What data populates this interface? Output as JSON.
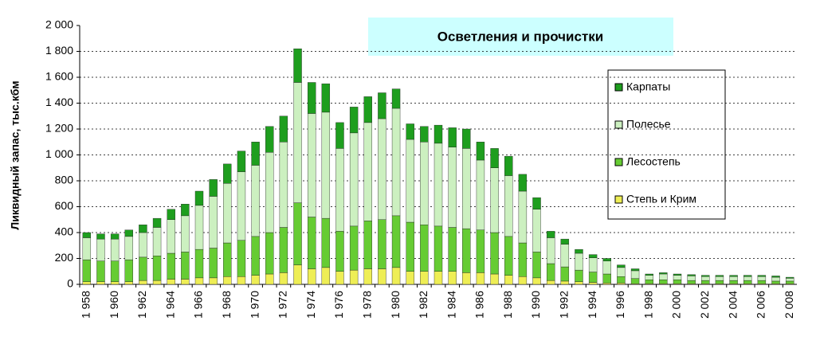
{
  "chart_data": {
    "type": "stacked-bar",
    "title": "Осветления и прочистки",
    "y_label": "Ликвидный запас, тыс.кбм",
    "categories": [
      "1 958",
      null,
      "1 960",
      null,
      "1 962",
      null,
      "1 964",
      null,
      "1 966",
      null,
      "1 968",
      null,
      "1 970",
      null,
      "1 972",
      null,
      "1 974",
      null,
      "1 976",
      null,
      "1 978",
      null,
      "1 980",
      null,
      "1 982",
      null,
      "1 984",
      null,
      "1 986",
      null,
      "1 988",
      null,
      "1 990",
      null,
      "1 992",
      null,
      "1 994",
      null,
      "1 996",
      null,
      "1 998",
      null,
      "2 000",
      null,
      "2 002",
      null,
      "2 004",
      null,
      "2 006",
      null,
      "2 008"
    ],
    "series": [
      {
        "name": "Степь и Крим",
        "color": "#eeee55",
        "values": [
          20,
          20,
          20,
          20,
          30,
          30,
          40,
          40,
          50,
          50,
          60,
          60,
          70,
          80,
          90,
          150,
          120,
          130,
          100,
          110,
          120,
          120,
          130,
          100,
          100,
          100,
          100,
          90,
          90,
          80,
          70,
          60,
          50,
          30,
          25,
          20,
          15,
          10,
          10,
          5,
          5,
          5,
          5,
          5,
          5,
          5,
          5,
          5,
          5,
          5,
          5
        ]
      },
      {
        "name": "Лесостепь",
        "color": "#66cc33",
        "values": [
          170,
          160,
          160,
          170,
          180,
          190,
          200,
          210,
          220,
          230,
          260,
          280,
          300,
          320,
          350,
          480,
          400,
          380,
          310,
          340,
          370,
          380,
          400,
          380,
          360,
          350,
          340,
          340,
          330,
          320,
          300,
          260,
          200,
          130,
          110,
          90,
          80,
          70,
          50,
          40,
          30,
          30,
          30,
          25,
          25,
          25,
          25,
          25,
          25,
          20,
          20
        ]
      },
      {
        "name": "Полесье",
        "color": "#ccf0c0",
        "values": [
          170,
          170,
          170,
          180,
          190,
          220,
          260,
          280,
          340,
          400,
          460,
          530,
          550,
          620,
          660,
          930,
          800,
          820,
          640,
          720,
          760,
          780,
          830,
          640,
          640,
          640,
          620,
          620,
          540,
          500,
          470,
          400,
          330,
          200,
          175,
          130,
          110,
          100,
          70,
          60,
          35,
          45,
          35,
          35,
          30,
          30,
          30,
          30,
          30,
          30,
          22
        ]
      },
      {
        "name": "Карпаты",
        "color": "#1e9e1e",
        "values": [
          40,
          40,
          40,
          50,
          60,
          70,
          80,
          90,
          110,
          130,
          150,
          160,
          180,
          200,
          200,
          260,
          240,
          220,
          200,
          200,
          200,
          200,
          150,
          120,
          120,
          140,
          150,
          150,
          140,
          150,
          150,
          130,
          90,
          50,
          40,
          30,
          25,
          20,
          20,
          15,
          10,
          10,
          10,
          10,
          10,
          10,
          10,
          10,
          10,
          10,
          8
        ]
      }
    ],
    "ylim": [
      0,
      2000
    ],
    "yticks": [
      0,
      200,
      400,
      600,
      800,
      {
        "value": 1000,
        "label": "1 000"
      },
      {
        "value": 1200,
        "label": "1 200"
      },
      {
        "value": 1400,
        "label": "1 400"
      },
      {
        "value": 1600,
        "label": "1 600"
      },
      {
        "value": 1800,
        "label": "1 800"
      },
      {
        "value": 2000,
        "label": "2 000"
      }
    ],
    "grid": true
  }
}
